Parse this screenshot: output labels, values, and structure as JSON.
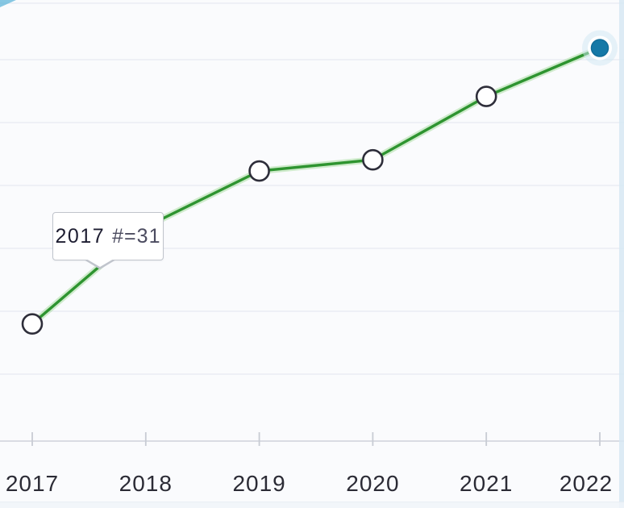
{
  "chart_data": {
    "type": "line",
    "title": "",
    "xlabel": "",
    "ylabel": "",
    "categories": [
      "2017",
      "2018",
      "2019",
      "2020",
      "2021",
      "2022"
    ],
    "series": [
      {
        "name": "#",
        "values": [
          31,
          57,
          72,
          75,
          92,
          105
        ]
      }
    ],
    "ylim": [
      0,
      117
    ],
    "grid": "horizontal",
    "legend_position": "none",
    "highlight_index": 5,
    "tooltip_shown": {
      "category": "2017",
      "value": 31,
      "text": "2017 #=31"
    },
    "colors": {
      "line": "#2e9430",
      "line_glow": "#6ec75e",
      "marker_stroke": "#2e2e3a",
      "marker_fill": "#ffffff",
      "highlight_fill": "#1579a7",
      "highlight_edge": "#116d99",
      "highlight_halo": "#cfe7f4",
      "grid": "#e9edf3",
      "axis": "#d9dce3",
      "tick": "#c8ccd4",
      "label": "#2b2b35",
      "background": "#fafbfd"
    }
  },
  "tooltip": {
    "year": "2017",
    "value_text": "#=31"
  }
}
